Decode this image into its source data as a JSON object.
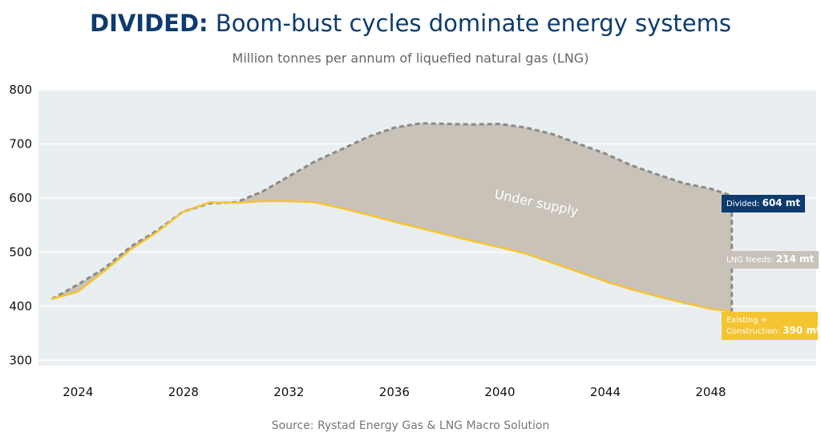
{
  "header": {
    "title_bold": "DIVIDED:",
    "title_rest": "Boom-bust cycles dominate energy systems",
    "subtitle": "Million tonnes per annum of liquefied natural gas (LNG)"
  },
  "footer": {
    "source": "Source: Rystad Energy Gas & LNG Macro Solution"
  },
  "tags": {
    "divided_label": "Divided:",
    "divided_value": "604 mt",
    "needs_label": "LNG Needs:",
    "needs_value": "214 mt",
    "existing_label_1": "Existing +",
    "existing_label_2": "Construction:",
    "existing_value": "390 mt"
  },
  "annotation": "Under supply",
  "colors": {
    "plot_bg": "#e9eef1",
    "fill": "#c9c2b8",
    "supply_line": "#f5c431",
    "demand_line": "#8a8a8a",
    "brand": "#0d3b6e"
  },
  "chart_data": {
    "type": "line",
    "title": "",
    "xlabel": "",
    "ylabel": "",
    "xlim": [
      2022.5,
      2052
    ],
    "ylim": [
      290,
      800
    ],
    "x_ticks": [
      2024,
      2028,
      2032,
      2036,
      2040,
      2044,
      2048
    ],
    "y_ticks": [
      300,
      400,
      500,
      600,
      700,
      800
    ],
    "grid": true,
    "series": [
      {
        "name": "Divided",
        "style": "dashed",
        "x": [
          2023.0,
          2024.0,
          2025.0,
          2026.0,
          2027.0,
          2028.0,
          2029.0,
          2030.0,
          2031.0,
          2032.0,
          2033.0,
          2034.0,
          2035.0,
          2036.0,
          2037.0,
          2038.0,
          2039.0,
          2040.0,
          2041.0,
          2042.0,
          2043.0,
          2044.0,
          2045.0,
          2046.0,
          2047.0,
          2048.0,
          2048.8
        ],
        "values": [
          413,
          440,
          470,
          510,
          540,
          575,
          590,
          592,
          612,
          640,
          668,
          690,
          713,
          730,
          738,
          737,
          736,
          737,
          730,
          718,
          700,
          682,
          660,
          643,
          627,
          617,
          604
        ]
      },
      {
        "name": "Existing + Construction",
        "style": "solid",
        "x": [
          2023.0,
          2024.0,
          2025.0,
          2026.0,
          2027.0,
          2028.0,
          2029.0,
          2030.0,
          2031.0,
          2032.0,
          2033.0,
          2034.0,
          2035.0,
          2036.0,
          2037.0,
          2038.0,
          2039.0,
          2040.0,
          2041.0,
          2042.0,
          2043.0,
          2044.0,
          2045.0,
          2046.0,
          2047.0,
          2048.0,
          2048.8
        ],
        "values": [
          413,
          427,
          465,
          505,
          537,
          575,
          592,
          591,
          594,
          594,
          592,
          581,
          569,
          556,
          544,
          532,
          520,
          509,
          497,
          480,
          463,
          446,
          431,
          418,
          406,
          395,
          390
        ]
      }
    ]
  }
}
